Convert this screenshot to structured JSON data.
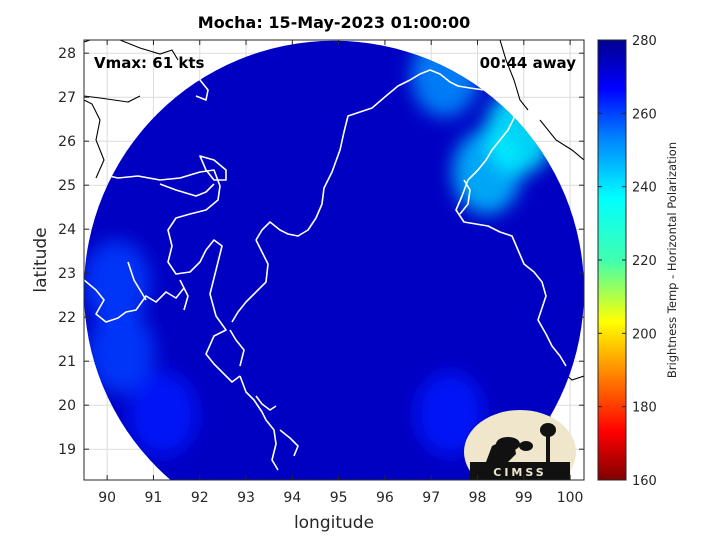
{
  "chart_data": {
    "type": "heatmap",
    "title": "Mocha: 15-May-2023 01:00:00",
    "annotations": {
      "left": "Vmax: 61 kts",
      "right": "00:44 away"
    },
    "xlabel": "longitude",
    "ylabel": "latitude",
    "xlim": [
      89.5,
      100.3
    ],
    "ylim": [
      18.3,
      28.3
    ],
    "xticks": [
      90,
      91,
      92,
      93,
      94,
      95,
      96,
      97,
      98,
      99,
      100
    ],
    "yticks": [
      19,
      20,
      21,
      22,
      23,
      24,
      25,
      26,
      27,
      28
    ],
    "grid": true,
    "colorbar": {
      "label": "Brightness Temp - Horizontal Polarization",
      "range": [
        160,
        280
      ],
      "ticks": [
        160,
        180,
        200,
        220,
        240,
        260,
        280
      ],
      "colormap": "jet"
    },
    "swath": {
      "shape": "circle",
      "center_lon": 94.9,
      "center_lat": 22.6,
      "background_value": 272
    },
    "warm_regions": [
      {
        "lon": 90.3,
        "lat": 21.2,
        "value": 258
      },
      {
        "lon": 91.2,
        "lat": 19.8,
        "value": 262
      },
      {
        "lon": 98.2,
        "lat": 25.3,
        "value": 242
      },
      {
        "lon": 98.9,
        "lat": 26.2,
        "value": 236
      },
      {
        "lon": 97.3,
        "lat": 27.5,
        "value": 248
      },
      {
        "lon": 97.4,
        "lat": 19.8,
        "value": 262
      },
      {
        "lon": 90.2,
        "lat": 22.8,
        "value": 258
      }
    ],
    "logo": "CIMSS",
    "colors": {
      "land_outline": "#ffffff",
      "coast_outside": "#000000",
      "background_field": "#0a1aa0"
    }
  }
}
